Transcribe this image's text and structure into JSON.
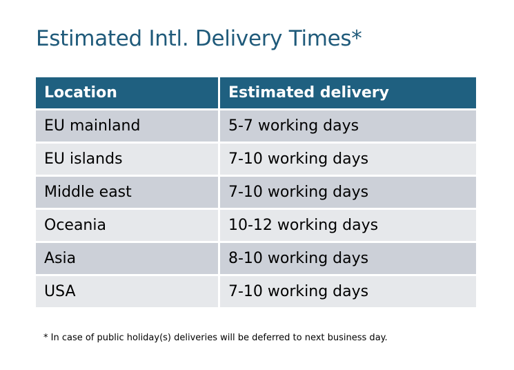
{
  "title": "Estimated Intl. Delivery Times*",
  "table": {
    "headers": [
      "Location",
      "Estimated delivery"
    ],
    "rows": [
      [
        "EU mainland",
        "5-7 working days"
      ],
      [
        "EU islands",
        "7-10 working days"
      ],
      [
        "Middle east",
        "7-10 working days"
      ],
      [
        "Oceania",
        "10-12 working days"
      ],
      [
        "Asia",
        "8-10 working days"
      ],
      [
        "USA",
        "7-10 working days"
      ]
    ]
  },
  "footnote": "* In case of public holiday(s) deliveries will be deferred to next business day.",
  "colors": {
    "header": "#1f6080",
    "title": "#1f5a7a",
    "row_dark": "#ccd0d8",
    "row_light": "#e6e8eb"
  }
}
